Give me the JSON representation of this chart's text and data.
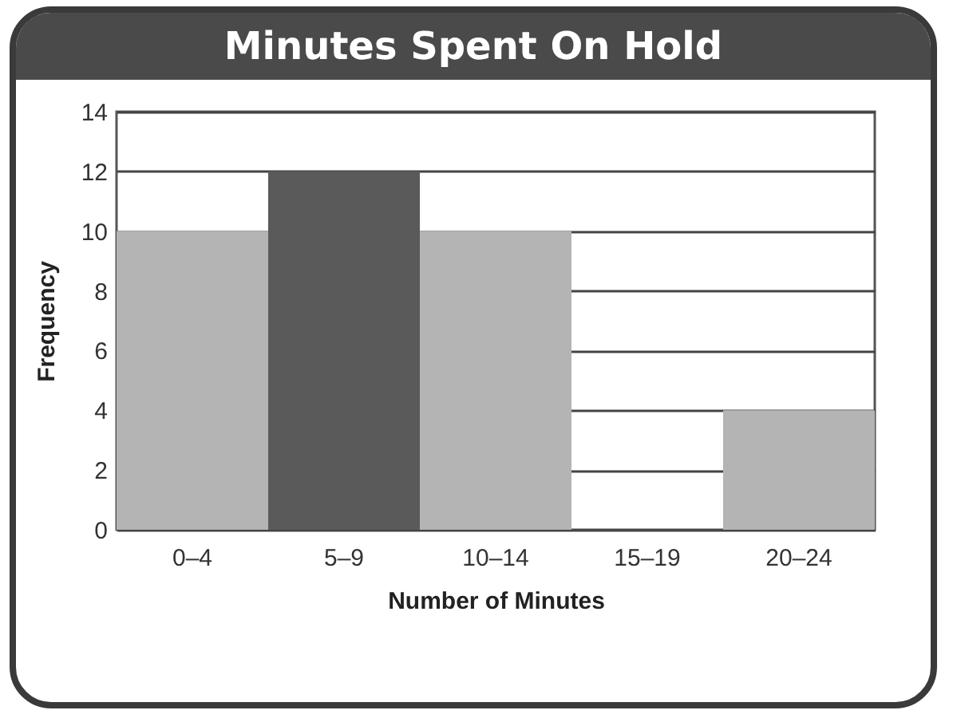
{
  "chart_data": {
    "type": "bar",
    "title": "Minutes Spent On Hold",
    "xlabel": "Number of Minutes",
    "ylabel": "Frequency",
    "categories": [
      "0–4",
      "5–9",
      "10–14",
      "15–19",
      "20–24"
    ],
    "values": [
      10,
      12,
      10,
      0,
      4
    ],
    "colors": [
      "#b4b4b4",
      "#5a5a5a",
      "#b4b4b4",
      "#b4b4b4",
      "#b4b4b4"
    ],
    "ylim": [
      0,
      14
    ],
    "yticks": [
      0,
      2,
      4,
      6,
      8,
      10,
      12,
      14
    ],
    "grid": "y"
  }
}
